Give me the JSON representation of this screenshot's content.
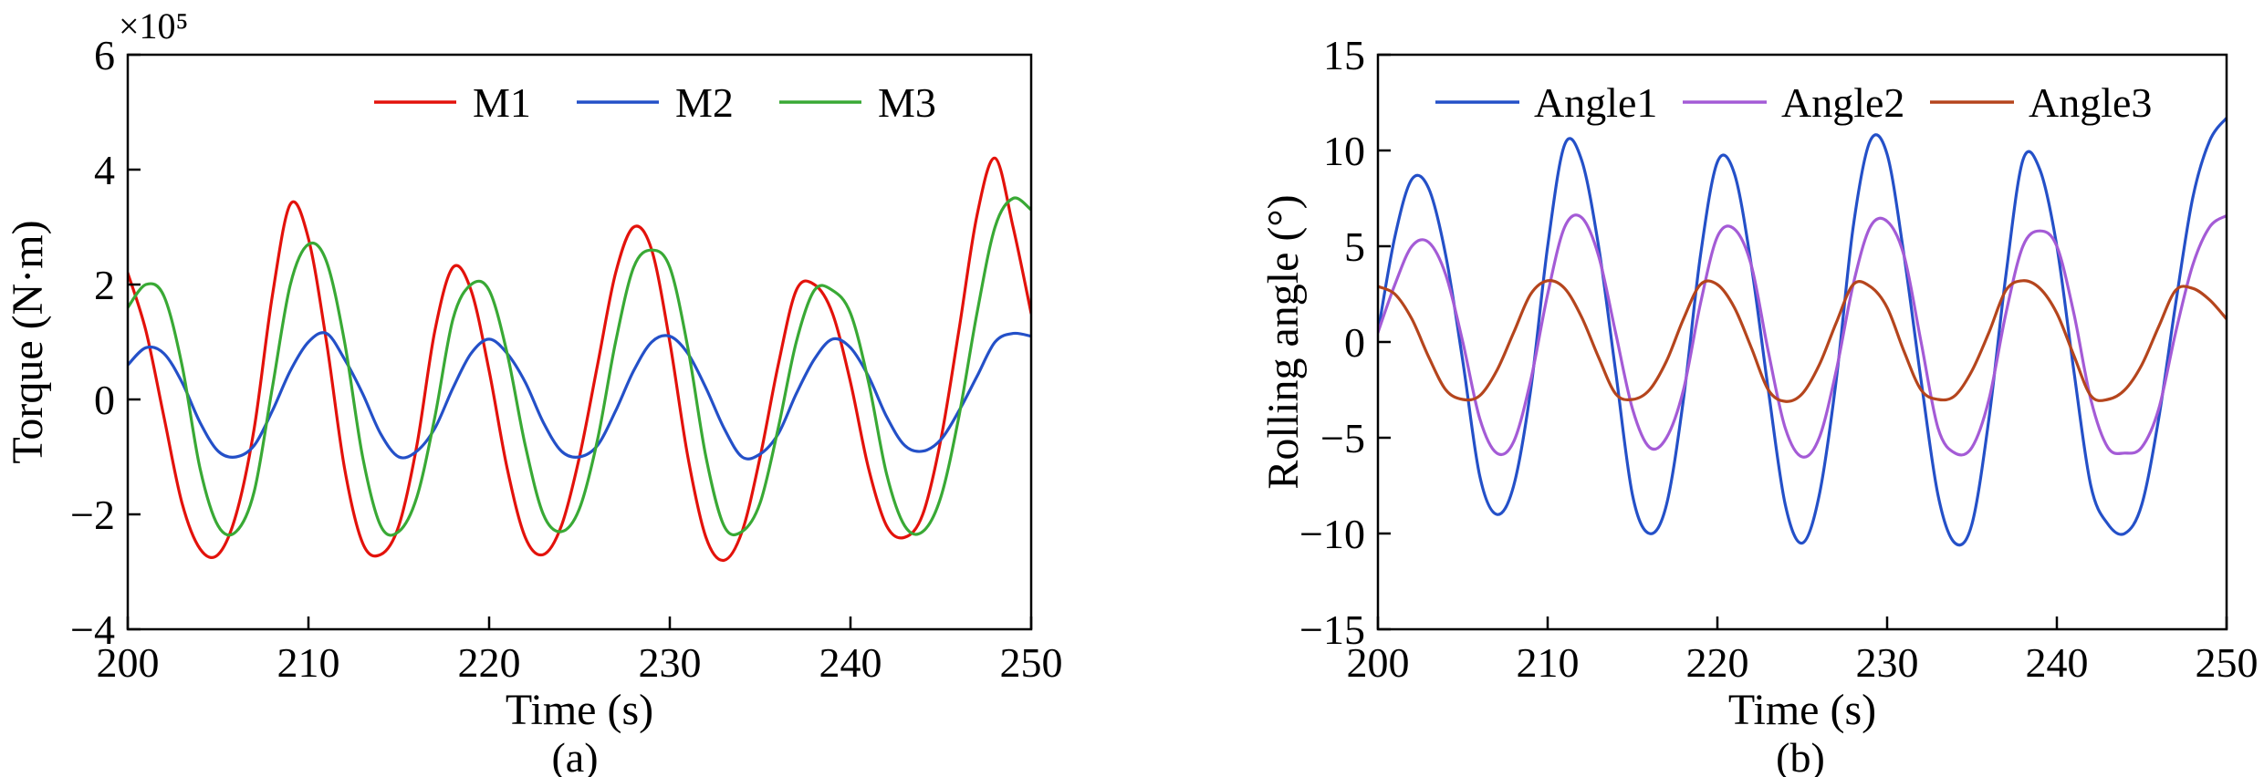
{
  "figure": {
    "background": "#ffffff"
  },
  "chart_data": [
    {
      "id": "a",
      "type": "line",
      "sublabel": "(a)",
      "xlabel": "Time (s)",
      "ylabel": "Torque (N·m)",
      "scale_label": "×10⁵",
      "xlim": [
        200,
        250
      ],
      "ylim": [
        -4,
        6
      ],
      "xticks": [
        200,
        210,
        220,
        230,
        240,
        250
      ],
      "yticks": [
        -4,
        -2,
        0,
        2,
        4,
        6
      ],
      "x_start": 200,
      "x_step": 1,
      "legend_position": "top-inside",
      "grid": false,
      "series": [
        {
          "name": "M1",
          "color": "#e3120b",
          "values": [
            2.2,
            1.2,
            -0.3,
            -1.8,
            -2.6,
            -2.7,
            -2.0,
            -0.5,
            1.8,
            3.4,
            2.8,
            1.0,
            -1.2,
            -2.5,
            -2.7,
            -2.2,
            -0.8,
            1.2,
            2.3,
            1.9,
            0.5,
            -1.2,
            -2.4,
            -2.7,
            -2.2,
            -1.0,
            0.6,
            2.2,
            3.0,
            2.6,
            1.0,
            -1.0,
            -2.4,
            -2.8,
            -2.3,
            -1.0,
            0.6,
            1.9,
            2.0,
            1.5,
            0.3,
            -1.2,
            -2.2,
            -2.4,
            -2.0,
            -0.7,
            1.2,
            3.2,
            4.2,
            3.0,
            1.5
          ]
        },
        {
          "name": "M2",
          "color": "#2450c8",
          "values": [
            0.6,
            0.9,
            0.8,
            0.3,
            -0.4,
            -0.9,
            -1.0,
            -0.8,
            -0.2,
            0.5,
            1.0,
            1.15,
            0.7,
            0.1,
            -0.6,
            -1.0,
            -0.9,
            -0.5,
            0.2,
            0.8,
            1.05,
            0.8,
            0.3,
            -0.4,
            -0.9,
            -1.0,
            -0.8,
            -0.2,
            0.5,
            1.0,
            1.1,
            0.8,
            0.2,
            -0.5,
            -1.0,
            -0.95,
            -0.6,
            0.1,
            0.7,
            1.05,
            0.9,
            0.4,
            -0.3,
            -0.8,
            -0.9,
            -0.7,
            -0.2,
            0.4,
            1.0,
            1.15,
            1.1
          ]
        },
        {
          "name": "M3",
          "color": "#39a935",
          "values": [
            1.6,
            2.0,
            1.8,
            0.6,
            -1.2,
            -2.2,
            -2.3,
            -1.6,
            0.2,
            2.0,
            2.7,
            2.4,
            1.0,
            -1.0,
            -2.2,
            -2.3,
            -1.7,
            -0.3,
            1.4,
            2.0,
            1.9,
            0.8,
            -0.8,
            -2.0,
            -2.3,
            -1.9,
            -0.7,
            1.0,
            2.3,
            2.6,
            2.3,
            0.9,
            -1.0,
            -2.2,
            -2.3,
            -1.8,
            -0.5,
            1.0,
            1.9,
            1.9,
            1.5,
            0.3,
            -1.3,
            -2.2,
            -2.3,
            -1.7,
            -0.3,
            1.5,
            3.0,
            3.5,
            3.3
          ]
        }
      ]
    },
    {
      "id": "b",
      "type": "line",
      "sublabel": "(b)",
      "xlabel": "Time (s)",
      "ylabel": "Rolling angle (°)",
      "scale_label": "",
      "xlim": [
        200,
        250
      ],
      "ylim": [
        -15,
        15
      ],
      "xticks": [
        200,
        210,
        220,
        230,
        240,
        250
      ],
      "yticks": [
        -15,
        -10,
        -5,
        0,
        5,
        10,
        15
      ],
      "x_start": 200,
      "x_step": 1,
      "legend_position": "top-inside",
      "grid": false,
      "series": [
        {
          "name": "Angle1",
          "color": "#2450c8",
          "values": [
            0.5,
            5.5,
            8.5,
            8.0,
            4.5,
            -1.0,
            -7.0,
            -9.0,
            -7.5,
            -2.5,
            5.0,
            10.3,
            9.5,
            5.0,
            -1.5,
            -8.0,
            -10.0,
            -8.5,
            -3.0,
            4.5,
            9.4,
            8.8,
            4.0,
            -2.5,
            -8.5,
            -10.5,
            -8.0,
            -2.0,
            6.0,
            10.5,
            9.8,
            4.5,
            -2.0,
            -8.0,
            -10.5,
            -9.5,
            -4.0,
            3.5,
            9.5,
            9.0,
            5.0,
            -1.5,
            -7.5,
            -9.5,
            -10.0,
            -8.5,
            -4.0,
            2.0,
            7.5,
            10.5,
            11.7
          ]
        },
        {
          "name": "Angle2",
          "color": "#a45bd6",
          "values": [
            0.5,
            3.0,
            5.0,
            5.2,
            3.5,
            0.0,
            -4.0,
            -5.8,
            -5.2,
            -2.0,
            2.5,
            6.0,
            6.5,
            4.5,
            0.5,
            -3.5,
            -5.5,
            -5.0,
            -2.5,
            2.0,
            5.5,
            5.9,
            4.0,
            -0.5,
            -4.5,
            -6.0,
            -5.0,
            -1.5,
            3.0,
            6.0,
            6.3,
            4.5,
            0.0,
            -4.5,
            -5.8,
            -5.5,
            -3.0,
            1.5,
            5.0,
            5.8,
            5.0,
            1.5,
            -3.0,
            -5.5,
            -5.8,
            -5.5,
            -3.5,
            0.5,
            4.0,
            6.0,
            6.6
          ]
        },
        {
          "name": "Angle3",
          "color": "#b5451d",
          "values": [
            2.9,
            2.5,
            1.2,
            -0.8,
            -2.5,
            -3.0,
            -2.8,
            -1.5,
            0.5,
            2.5,
            3.2,
            2.8,
            1.3,
            -0.8,
            -2.7,
            -3.0,
            -2.5,
            -1.0,
            1.2,
            3.0,
            3.0,
            1.8,
            -0.3,
            -2.5,
            -3.1,
            -2.7,
            -1.2,
            1.0,
            3.0,
            2.9,
            1.8,
            -0.5,
            -2.5,
            -3.0,
            -2.8,
            -1.5,
            0.5,
            2.7,
            3.2,
            2.8,
            1.5,
            -0.7,
            -2.8,
            -3.0,
            -2.5,
            -1.2,
            0.8,
            2.7,
            2.8,
            2.2,
            1.2
          ]
        }
      ]
    }
  ]
}
